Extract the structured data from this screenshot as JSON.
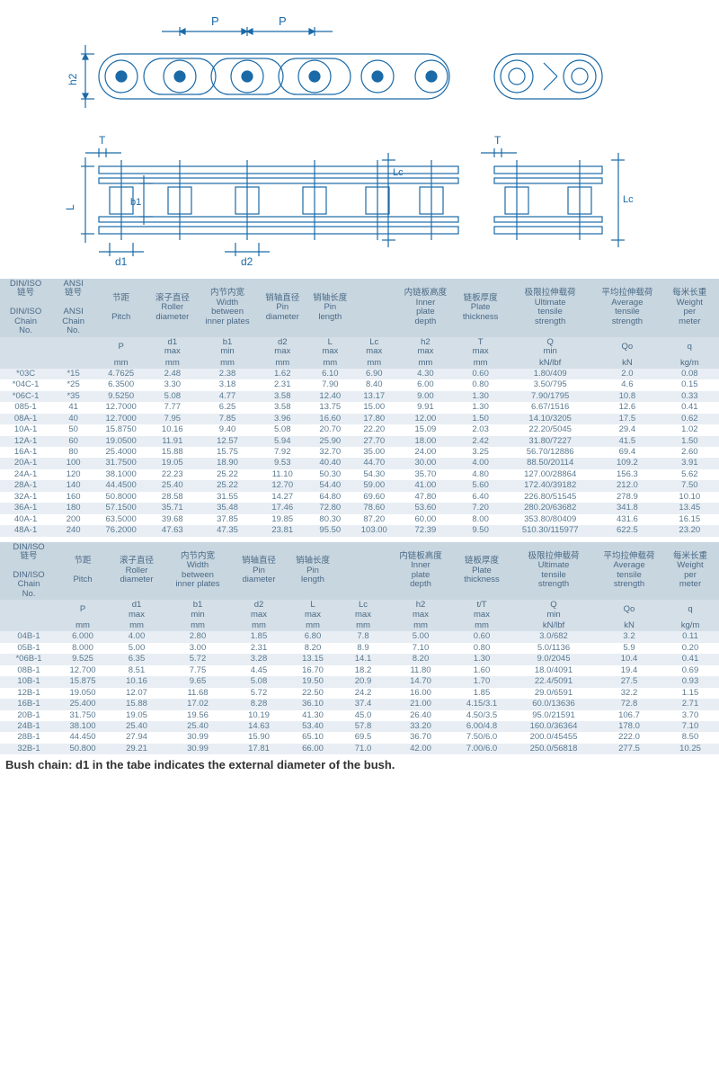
{
  "diagram": {
    "labels": {
      "P": "P",
      "h2": "h2",
      "d1": "d1",
      "d2": "d2",
      "L": "L",
      "b1": "b1",
      "T": "T",
      "Lc": "Lc"
    }
  },
  "table1": {
    "headers": {
      "r1": [
        "DIN/ISO\n链号\n\nDIN/ISO\nChain\nNo.",
        "ANSI\n链号\n\nANSI\nChain\nNo.",
        "节距\n\nPitch",
        "滚子直径\nRoller\ndiameter",
        "内节内宽\nWidth\nbetween\ninner plates",
        "销轴直径\nPin\ndiameter",
        "销轴长度\nPin\nlength",
        "",
        "内链板高度\nInner\nplate\ndepth",
        "链板厚度\nPlate\nthickness",
        "极限拉伸载荷\nUltimate\ntensile\nstrength",
        "平均拉伸载荷\nAverage\ntensile\nstrength",
        "每米长重\nWeight\nper\nmeter"
      ],
      "r2": [
        "",
        "",
        "P",
        "d1\nmax",
        "b1\nmin",
        "d2\nmax",
        "L\nmax",
        "Lc\nmax",
        "h2\nmax",
        "T\nmax",
        "Q\nmin",
        "Qo",
        "q"
      ],
      "r3": [
        "",
        "",
        "mm",
        "mm",
        "mm",
        "mm",
        "mm",
        "mm",
        "mm",
        "mm",
        "kN/lbf",
        "kN",
        "kg/m"
      ]
    },
    "rows": [
      [
        "*03C",
        "*15",
        "4.7625",
        "2.48",
        "2.38",
        "1.62",
        "6.10",
        "6.90",
        "4.30",
        "0.60",
        "1.80/409",
        "2.0",
        "0.08"
      ],
      [
        "*04C-1",
        "*25",
        "6.3500",
        "3.30",
        "3.18",
        "2.31",
        "7.90",
        "8.40",
        "6.00",
        "0.80",
        "3.50/795",
        "4.6",
        "0.15"
      ],
      [
        "*06C-1",
        "*35",
        "9.5250",
        "5.08",
        "4.77",
        "3.58",
        "12.40",
        "13.17",
        "9.00",
        "1.30",
        "7.90/1795",
        "10.8",
        "0.33"
      ],
      [
        "085-1",
        "41",
        "12.7000",
        "7.77",
        "6.25",
        "3.58",
        "13.75",
        "15.00",
        "9.91",
        "1.30",
        "6.67/1516",
        "12.6",
        "0.41"
      ],
      [
        "08A-1",
        "40",
        "12.7000",
        "7.95",
        "7.85",
        "3.96",
        "16.60",
        "17.80",
        "12.00",
        "1.50",
        "14.10/3205",
        "17.5",
        "0.62"
      ],
      [
        "10A-1",
        "50",
        "15.8750",
        "10.16",
        "9.40",
        "5.08",
        "20.70",
        "22.20",
        "15.09",
        "2.03",
        "22.20/5045",
        "29.4",
        "1.02"
      ],
      [
        "12A-1",
        "60",
        "19.0500",
        "11.91",
        "12.57",
        "5.94",
        "25.90",
        "27.70",
        "18.00",
        "2.42",
        "31.80/7227",
        "41.5",
        "1.50"
      ],
      [
        "16A-1",
        "80",
        "25.4000",
        "15.88",
        "15.75",
        "7.92",
        "32.70",
        "35.00",
        "24.00",
        "3.25",
        "56.70/12886",
        "69.4",
        "2.60"
      ],
      [
        "20A-1",
        "100",
        "31.7500",
        "19.05",
        "18.90",
        "9.53",
        "40.40",
        "44.70",
        "30.00",
        "4.00",
        "88.50/20114",
        "109.2",
        "3.91"
      ],
      [
        "24A-1",
        "120",
        "38.1000",
        "22.23",
        "25.22",
        "11.10",
        "50.30",
        "54.30",
        "35.70",
        "4.80",
        "127.00/28864",
        "156.3",
        "5.62"
      ],
      [
        "28A-1",
        "140",
        "44.4500",
        "25.40",
        "25.22",
        "12.70",
        "54.40",
        "59.00",
        "41.00",
        "5.60",
        "172.40/39182",
        "212.0",
        "7.50"
      ],
      [
        "32A-1",
        "160",
        "50.8000",
        "28.58",
        "31.55",
        "14.27",
        "64.80",
        "69.60",
        "47.80",
        "6.40",
        "226.80/51545",
        "278.9",
        "10.10"
      ],
      [
        "36A-1",
        "180",
        "57.1500",
        "35.71",
        "35.48",
        "17.46",
        "72.80",
        "78.60",
        "53.60",
        "7.20",
        "280.20/63682",
        "341.8",
        "13.45"
      ],
      [
        "40A-1",
        "200",
        "63.5000",
        "39.68",
        "37.85",
        "19.85",
        "80.30",
        "87.20",
        "60.00",
        "8.00",
        "353.80/80409",
        "431.6",
        "16.15"
      ],
      [
        "48A-1",
        "240",
        "76.2000",
        "47.63",
        "47.35",
        "23.81",
        "95.50",
        "103.00",
        "72.39",
        "9.50",
        "510.30/115977",
        "622.5",
        "23.20"
      ]
    ]
  },
  "table2": {
    "headers": {
      "r1": [
        "DIN/ISO\n链号\n\nDIN/ISO\nChain\nNo.",
        "节距\n\nPitch",
        "滚子直径\nRoller\ndiameter",
        "内节内宽\nWidth\nbetween\ninner plates",
        "销轴直径\nPin\ndiameter",
        "销轴长度\nPin\nlength",
        "",
        "内链板高度\nInner\nplate\ndepth",
        "链板厚度\nPlate\nthickness",
        "极限拉伸载荷\nUltimate\ntensile\nstrength",
        "平均拉伸载荷\nAverage\ntensile\nstrength",
        "每米长重\nWeight\nper\nmeter"
      ],
      "r2": [
        "",
        "P",
        "d1\nmax",
        "b1\nmin",
        "d2\nmax",
        "L\nmax",
        "Lc\nmax",
        "h2\nmax",
        "t/T\nmax",
        "Q\nmin",
        "Qo",
        "q"
      ],
      "r3": [
        "",
        "mm",
        "mm",
        "mm",
        "mm",
        "mm",
        "mm",
        "mm",
        "mm",
        "kN/lbf",
        "kN",
        "kg/m"
      ]
    },
    "rows": [
      [
        "04B-1",
        "6.000",
        "4.00",
        "2.80",
        "1.85",
        "6.80",
        "7.8",
        "5.00",
        "0.60",
        "3.0/682",
        "3.2",
        "0.11"
      ],
      [
        "05B-1",
        "8.000",
        "5.00",
        "3.00",
        "2.31",
        "8.20",
        "8.9",
        "7.10",
        "0.80",
        "5.0/1136",
        "5.9",
        "0.20"
      ],
      [
        "*06B-1",
        "9.525",
        "6.35",
        "5.72",
        "3.28",
        "13.15",
        "14.1",
        "8.20",
        "1.30",
        "9.0/2045",
        "10.4",
        "0.41"
      ],
      [
        "08B-1",
        "12.700",
        "8.51",
        "7.75",
        "4.45",
        "16.70",
        "18.2",
        "11.80",
        "1.60",
        "18.0/4091",
        "19.4",
        "0.69"
      ],
      [
        "10B-1",
        "15.875",
        "10.16",
        "9.65",
        "5.08",
        "19.50",
        "20.9",
        "14.70",
        "1.70",
        "22.4/5091",
        "27.5",
        "0.93"
      ],
      [
        "12B-1",
        "19.050",
        "12.07",
        "11.68",
        "5.72",
        "22.50",
        "24.2",
        "16.00",
        "1.85",
        "29.0/6591",
        "32.2",
        "1.15"
      ],
      [
        "16B-1",
        "25.400",
        "15.88",
        "17.02",
        "8.28",
        "36.10",
        "37.4",
        "21.00",
        "4.15/3.1",
        "60.0/13636",
        "72.8",
        "2.71"
      ],
      [
        "20B-1",
        "31.750",
        "19.05",
        "19.56",
        "10.19",
        "41.30",
        "45.0",
        "26.40",
        "4.50/3.5",
        "95.0/21591",
        "106.7",
        "3.70"
      ],
      [
        "24B-1",
        "38.100",
        "25.40",
        "25.40",
        "14.63",
        "53.40",
        "57.8",
        "33.20",
        "6.00/4.8",
        "160.0/36364",
        "178.0",
        "7.10"
      ],
      [
        "28B-1",
        "44.450",
        "27.94",
        "30.99",
        "15.90",
        "65.10",
        "69.5",
        "36.70",
        "7.50/6.0",
        "200.0/45455",
        "222.0",
        "8.50"
      ],
      [
        "32B-1",
        "50.800",
        "29.21",
        "30.99",
        "17.81",
        "66.00",
        "71.0",
        "42.00",
        "7.00/6.0",
        "250.0/56818",
        "277.5",
        "10.25"
      ]
    ]
  },
  "footnote": "Bush chain: d1 in the tabe indicates the external diameter of the bush."
}
